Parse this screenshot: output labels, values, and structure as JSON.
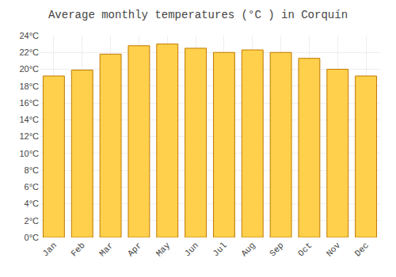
{
  "chart_data": {
    "type": "bar",
    "title": "Average monthly temperatures (°C ) in Corquí­n",
    "categories": [
      "Jan",
      "Feb",
      "Mar",
      "Apr",
      "May",
      "Jun",
      "Jul",
      "Aug",
      "Sep",
      "Oct",
      "Nov",
      "Dec"
    ],
    "values": [
      19.2,
      19.9,
      21.8,
      22.8,
      23.0,
      22.5,
      22.0,
      22.3,
      22.0,
      21.3,
      20.0,
      19.2
    ],
    "color": "#FFD04B",
    "ylim": [
      0,
      24
    ],
    "yticks": [
      {
        "value": 0,
        "label": "0°C"
      },
      {
        "value": 2,
        "label": "2°C"
      },
      {
        "value": 4,
        "label": "4°C"
      },
      {
        "value": 6,
        "label": "6°C"
      },
      {
        "value": 8,
        "label": "8°C"
      },
      {
        "value": 10,
        "label": "10°C"
      },
      {
        "value": 12,
        "label": "12°C"
      },
      {
        "value": 14,
        "label": "14°C"
      },
      {
        "value": 16,
        "label": "16°C"
      },
      {
        "value": 18,
        "label": "18°C"
      },
      {
        "value": 20,
        "label": "20°C"
      },
      {
        "value": 22,
        "label": "22°C"
      },
      {
        "value": 24,
        "label": "24°C"
      }
    ],
    "grid": true
  }
}
